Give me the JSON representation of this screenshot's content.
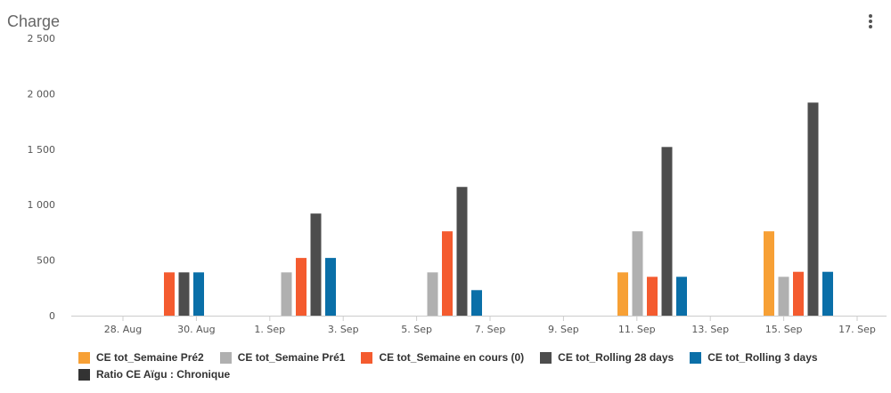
{
  "header": {
    "title": "Charge",
    "menu_icon": "vertical-ellipsis-icon"
  },
  "chart_data": {
    "type": "bar",
    "title": "Charge",
    "xlabel": "",
    "ylabel": "",
    "ylim": [
      0,
      2500
    ],
    "yticks": [
      0,
      500,
      1000,
      1500,
      2000,
      2500
    ],
    "ytick_labels": [
      "0",
      "500",
      "1 000",
      "1 500",
      "2 000",
      "2 500"
    ],
    "xtick_labels": [
      "28. Aug",
      "30. Aug",
      "1. Sep",
      "3. Sep",
      "5. Sep",
      "7. Sep",
      "9. Sep",
      "11. Sep",
      "13. Sep",
      "15. Sep",
      "17. Sep"
    ],
    "categories": [
      "28. Aug",
      "1. Sep",
      "5. Sep",
      "11. Sep",
      "15. Sep"
    ],
    "grid": false,
    "legend_position": "bottom",
    "series": [
      {
        "name": "CE tot_Semaine Pré2",
        "color": "#f7a035",
        "values": [
          null,
          null,
          null,
          390,
          760
        ]
      },
      {
        "name": "CE tot_Semaine Pré1",
        "color": "#b0b0b0",
        "values": [
          null,
          390,
          390,
          760,
          350
        ]
      },
      {
        "name": "CE tot_Semaine en cours (0)",
        "color": "#f45b2f",
        "values": [
          390,
          520,
          760,
          350,
          395
        ]
      },
      {
        "name": "CE tot_Rolling 28 days",
        "color": "#4d4d4d",
        "values": [
          390,
          920,
          1160,
          1520,
          1920
        ]
      },
      {
        "name": "CE tot_Rolling 3 days",
        "color": "#0a6fa8",
        "values": [
          390,
          520,
          230,
          350,
          395
        ]
      },
      {
        "name": "Ratio CE Aïgu : Chronique",
        "color": "#333333",
        "values": [
          null,
          null,
          null,
          null,
          null
        ]
      }
    ]
  }
}
